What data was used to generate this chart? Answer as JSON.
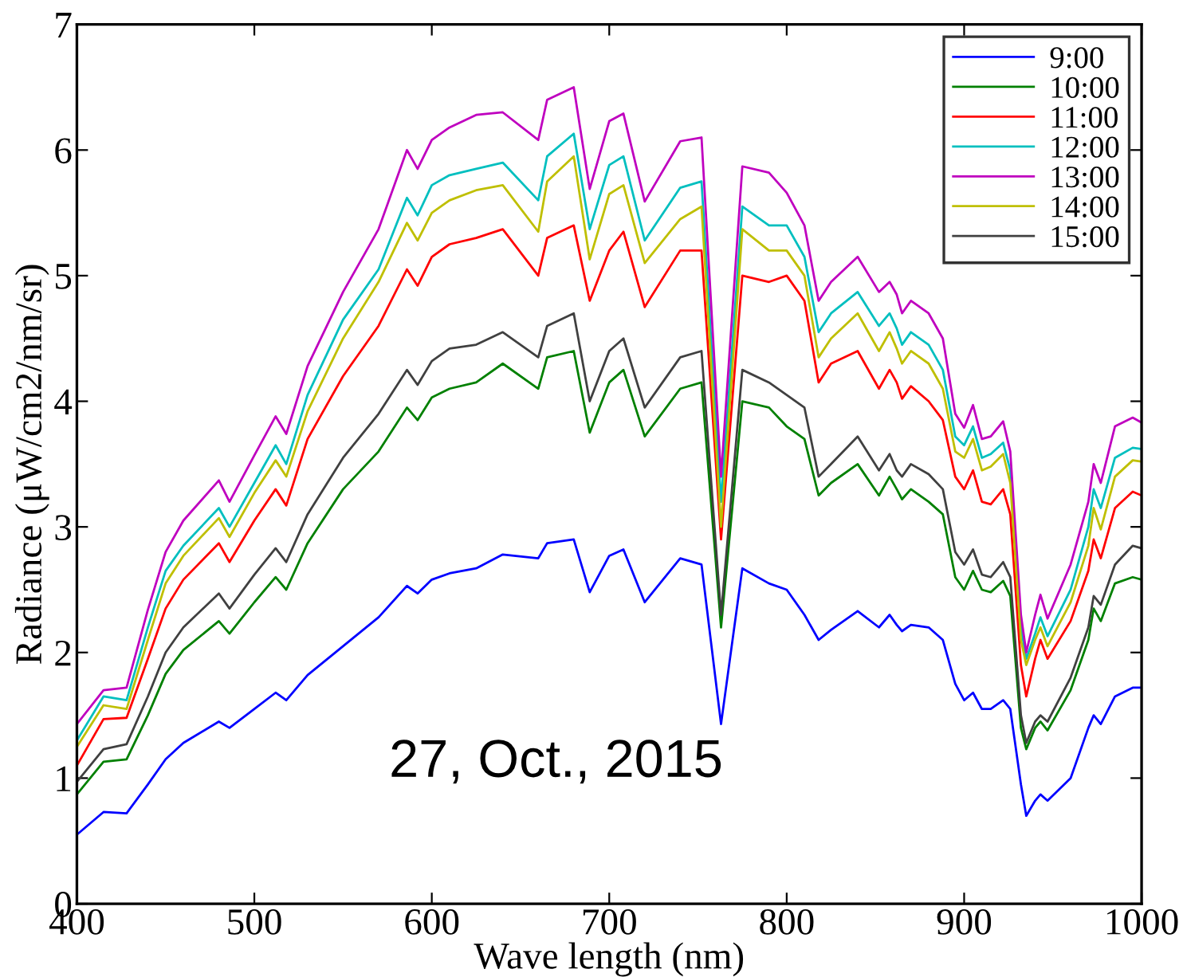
{
  "chart_data": {
    "type": "line",
    "xlabel": "Wave length (nm)",
    "ylabel": "Radiance (μW/cm2/nm/sr)",
    "annotations": [
      "27, Oct., 2015"
    ],
    "x": [
      400,
      415,
      428,
      440,
      450,
      460,
      480,
      486,
      500,
      512,
      518,
      530,
      550,
      570,
      586,
      592,
      600,
      610,
      625,
      640,
      660,
      665,
      680,
      689,
      700,
      708,
      720,
      740,
      752,
      763,
      775,
      790,
      800,
      810,
      818,
      825,
      840,
      852,
      858,
      862,
      865,
      870,
      880,
      888,
      895,
      900,
      905,
      910,
      915,
      922,
      926,
      932,
      935,
      940,
      943,
      947,
      960,
      970,
      973,
      977,
      985,
      995,
      1000
    ],
    "xlim": [
      400,
      1000
    ],
    "xticks": [
      400,
      500,
      600,
      700,
      800,
      900,
      1000
    ],
    "ylim": [
      0,
      7
    ],
    "yticks": [
      0,
      1,
      2,
      3,
      4,
      5,
      6,
      7
    ],
    "grid": false,
    "legend": "top right",
    "line_style": "solid",
    "marker": "none",
    "series": [
      {
        "name": "9:00",
        "color": "#0000ff",
        "values": [
          0.55,
          0.73,
          0.72,
          0.95,
          1.15,
          1.28,
          1.45,
          1.4,
          1.55,
          1.68,
          1.62,
          1.82,
          2.05,
          2.28,
          2.53,
          2.47,
          2.58,
          2.63,
          2.67,
          2.78,
          2.75,
          2.87,
          2.9,
          2.48,
          2.77,
          2.82,
          2.4,
          2.75,
          2.7,
          1.43,
          2.67,
          2.55,
          2.5,
          2.3,
          2.1,
          2.18,
          2.33,
          2.2,
          2.3,
          2.22,
          2.17,
          2.22,
          2.2,
          2.1,
          1.75,
          1.62,
          1.68,
          1.55,
          1.55,
          1.62,
          1.55,
          0.95,
          0.7,
          0.82,
          0.87,
          0.82,
          1.0,
          1.4,
          1.5,
          1.43,
          1.65,
          1.72,
          1.72
        ]
      },
      {
        "name": "10:00",
        "color": "#008000",
        "values": [
          0.87,
          1.13,
          1.15,
          1.5,
          1.83,
          2.02,
          2.25,
          2.15,
          2.4,
          2.6,
          2.5,
          2.87,
          3.3,
          3.6,
          3.95,
          3.85,
          4.03,
          4.1,
          4.15,
          4.3,
          4.1,
          4.35,
          4.4,
          3.75,
          4.15,
          4.25,
          3.72,
          4.1,
          4.15,
          2.2,
          4.0,
          3.95,
          3.8,
          3.7,
          3.25,
          3.35,
          3.5,
          3.25,
          3.4,
          3.3,
          3.22,
          3.3,
          3.2,
          3.1,
          2.6,
          2.5,
          2.65,
          2.5,
          2.48,
          2.57,
          2.45,
          1.4,
          1.23,
          1.4,
          1.45,
          1.38,
          1.7,
          2.1,
          2.35,
          2.25,
          2.55,
          2.6,
          2.58
        ]
      },
      {
        "name": "11:00",
        "color": "#ff0000",
        "values": [
          1.1,
          1.47,
          1.48,
          1.95,
          2.35,
          2.58,
          2.87,
          2.72,
          3.05,
          3.3,
          3.17,
          3.7,
          4.2,
          4.6,
          5.05,
          4.92,
          5.15,
          5.25,
          5.3,
          5.37,
          5.0,
          5.3,
          5.4,
          4.8,
          5.2,
          5.35,
          4.75,
          5.2,
          5.2,
          2.9,
          5.0,
          4.95,
          5.0,
          4.8,
          4.15,
          4.3,
          4.4,
          4.1,
          4.25,
          4.15,
          4.02,
          4.12,
          4.0,
          3.85,
          3.4,
          3.3,
          3.45,
          3.2,
          3.18,
          3.3,
          3.1,
          1.9,
          1.65,
          1.95,
          2.1,
          1.95,
          2.25,
          2.65,
          2.9,
          2.75,
          3.15,
          3.28,
          3.25
        ]
      },
      {
        "name": "12:00",
        "color": "#00bfbf",
        "values": [
          1.3,
          1.65,
          1.62,
          2.2,
          2.65,
          2.85,
          3.15,
          3.0,
          3.35,
          3.65,
          3.5,
          4.05,
          4.65,
          5.05,
          5.62,
          5.48,
          5.72,
          5.8,
          5.85,
          5.9,
          5.6,
          5.95,
          6.13,
          5.37,
          5.88,
          5.95,
          5.28,
          5.7,
          5.75,
          3.2,
          5.55,
          5.4,
          5.4,
          5.15,
          4.55,
          4.7,
          4.87,
          4.6,
          4.7,
          4.58,
          4.45,
          4.55,
          4.45,
          4.25,
          3.72,
          3.65,
          3.8,
          3.55,
          3.58,
          3.67,
          3.45,
          2.2,
          1.95,
          2.15,
          2.28,
          2.13,
          2.5,
          3.0,
          3.3,
          3.15,
          3.55,
          3.63,
          3.62
        ]
      },
      {
        "name": "13:00",
        "color": "#bf00bf",
        "values": [
          1.43,
          1.7,
          1.72,
          2.34,
          2.8,
          3.05,
          3.37,
          3.2,
          3.57,
          3.88,
          3.74,
          4.28,
          4.87,
          5.37,
          6.0,
          5.85,
          6.08,
          6.18,
          6.28,
          6.3,
          6.08,
          6.4,
          6.5,
          5.69,
          6.23,
          6.29,
          5.59,
          6.07,
          6.1,
          3.4,
          5.87,
          5.82,
          5.66,
          5.4,
          4.8,
          4.95,
          5.15,
          4.87,
          4.95,
          4.85,
          4.7,
          4.8,
          4.7,
          4.5,
          3.9,
          3.79,
          3.97,
          3.7,
          3.72,
          3.84,
          3.6,
          2.3,
          2.0,
          2.3,
          2.46,
          2.27,
          2.7,
          3.2,
          3.5,
          3.35,
          3.8,
          3.87,
          3.83
        ]
      },
      {
        "name": "14:00",
        "color": "#bfbf00",
        "values": [
          1.25,
          1.58,
          1.55,
          2.1,
          2.55,
          2.77,
          3.07,
          2.92,
          3.27,
          3.53,
          3.4,
          3.92,
          4.5,
          4.95,
          5.42,
          5.28,
          5.5,
          5.6,
          5.68,
          5.72,
          5.35,
          5.75,
          5.95,
          5.13,
          5.65,
          5.72,
          5.1,
          5.45,
          5.55,
          3.0,
          5.37,
          5.2,
          5.2,
          5.0,
          4.35,
          4.5,
          4.7,
          4.4,
          4.55,
          4.42,
          4.3,
          4.4,
          4.3,
          4.1,
          3.6,
          3.55,
          3.7,
          3.45,
          3.48,
          3.58,
          3.35,
          2.1,
          1.9,
          2.1,
          2.2,
          2.05,
          2.4,
          2.85,
          3.15,
          2.98,
          3.4,
          3.53,
          3.52
        ]
      },
      {
        "name": "15:00",
        "color": "#404040",
        "values": [
          0.97,
          1.23,
          1.27,
          1.65,
          2.0,
          2.2,
          2.47,
          2.35,
          2.62,
          2.83,
          2.72,
          3.1,
          3.55,
          3.9,
          4.25,
          4.13,
          4.32,
          4.42,
          4.45,
          4.55,
          4.35,
          4.6,
          4.7,
          4.0,
          4.4,
          4.5,
          3.95,
          4.35,
          4.4,
          2.3,
          4.25,
          4.15,
          4.05,
          3.95,
          3.4,
          3.5,
          3.72,
          3.45,
          3.58,
          3.45,
          3.4,
          3.5,
          3.42,
          3.3,
          2.8,
          2.7,
          2.82,
          2.62,
          2.6,
          2.72,
          2.6,
          1.5,
          1.28,
          1.45,
          1.5,
          1.45,
          1.8,
          2.2,
          2.45,
          2.38,
          2.7,
          2.85,
          2.83
        ]
      }
    ]
  }
}
